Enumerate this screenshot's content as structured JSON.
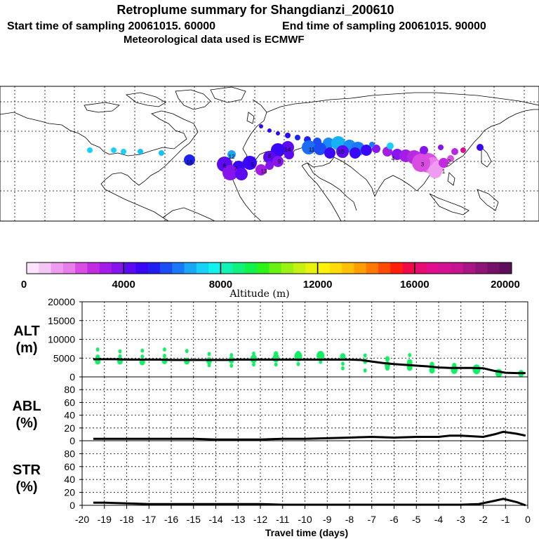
{
  "header": {
    "title": "Retroplume summary for Shangdianzi_200610",
    "start_label": "Start time of sampling 20061015. 60000",
    "end_label": "End time of sampling 20061015. 90000",
    "met_label": "Meteorological data used is ECMWF"
  },
  "colorbar": {
    "label": "Altitude (m)",
    "tick_labels": [
      "0",
      "4000",
      "8000",
      "12000",
      "16000",
      "20000"
    ],
    "min": 0,
    "max": 20000,
    "colors": [
      "#fbe4fb",
      "#f4c6f4",
      "#ee9cf0",
      "#e77ee9",
      "#d94de3",
      "#c22be0",
      "#a31de6",
      "#8514ed",
      "#5b0af2",
      "#3a07f6",
      "#1f1ff0",
      "#1c4cf4",
      "#1979f6",
      "#1aa7f6",
      "#17d1f7",
      "#14f2ef",
      "#11f2b4",
      "#10f27c",
      "#12f24a",
      "#2cf21a",
      "#67f214",
      "#9bf212",
      "#c7f211",
      "#e8f20e",
      "#fff20a",
      "#ffdc08",
      "#ffbf06",
      "#ff9d05",
      "#ff7804",
      "#ff4a05",
      "#ff1f0a",
      "#f00a47",
      "#e80b71",
      "#e00e8c",
      "#d31293",
      "#c3158f",
      "#a91585",
      "#8f1477",
      "#751268",
      "#5d0f59"
    ]
  },
  "map": {
    "plume_labels": [
      "16",
      "12",
      "13",
      "14",
      "11",
      "10",
      "9",
      "8",
      "7",
      "6",
      "5",
      "4",
      "3",
      "2",
      "1"
    ]
  },
  "chart_data": [
    {
      "type": "scatter",
      "panel": "ALT",
      "ylabel": "ALT\n(m)",
      "ylabel_lines": [
        "ALT",
        "(m)"
      ],
      "ylim": [
        0,
        20000
      ],
      "yticks": [
        "20000",
        "15000",
        "10000",
        "5000",
        "0"
      ],
      "xlim": [
        -20,
        0
      ],
      "line_x": [
        -19.5,
        -19,
        -18.5,
        -18,
        -17.5,
        -17,
        -16.5,
        -16,
        -15.5,
        -15,
        -14.5,
        -14,
        -13.5,
        -13,
        -12.5,
        -12,
        -11.5,
        -11,
        -10.5,
        -10,
        -9.5,
        -9,
        -8.5,
        -8,
        -7.5,
        -7,
        -6.5,
        -6,
        -5.5,
        -5,
        -4.5,
        -4,
        -3.5,
        -3,
        -2.5,
        -2,
        -1.5,
        -1,
        -0.5,
        -0.1
      ],
      "line_y": [
        4700,
        4700,
        4700,
        4600,
        4600,
        4600,
        4600,
        4500,
        4500,
        4500,
        4500,
        4500,
        4500,
        4600,
        4600,
        4600,
        4600,
        4600,
        4600,
        4600,
        4600,
        4600,
        4600,
        4600,
        4500,
        4100,
        3700,
        3400,
        3200,
        3000,
        2800,
        2500,
        2400,
        2400,
        2400,
        2300,
        1600,
        1100,
        1000,
        1000
      ],
      "scatter": [
        {
          "x": -19.3,
          "y": 4200,
          "size": 5
        },
        {
          "x": -19.3,
          "y": 5200,
          "size": 4
        },
        {
          "x": -19.3,
          "y": 7300,
          "size": 3
        },
        {
          "x": -18.3,
          "y": 4200,
          "size": 5
        },
        {
          "x": -18.3,
          "y": 5500,
          "size": 3
        },
        {
          "x": -18.3,
          "y": 6800,
          "size": 3
        },
        {
          "x": -17.3,
          "y": 4000,
          "size": 5
        },
        {
          "x": -17.3,
          "y": 5400,
          "size": 3
        },
        {
          "x": -17.3,
          "y": 7000,
          "size": 3
        },
        {
          "x": -16.3,
          "y": 4300,
          "size": 5
        },
        {
          "x": -16.3,
          "y": 5600,
          "size": 3
        },
        {
          "x": -16.3,
          "y": 7300,
          "size": 3
        },
        {
          "x": -15.3,
          "y": 4200,
          "size": 5
        },
        {
          "x": -15.3,
          "y": 6900,
          "size": 3
        },
        {
          "x": -14.3,
          "y": 4300,
          "size": 5
        },
        {
          "x": -14.3,
          "y": 3100,
          "size": 3
        },
        {
          "x": -14.3,
          "y": 6100,
          "size": 3
        },
        {
          "x": -13.3,
          "y": 4500,
          "size": 5
        },
        {
          "x": -13.3,
          "y": 3000,
          "size": 3
        },
        {
          "x": -13.3,
          "y": 5800,
          "size": 3
        },
        {
          "x": -12.3,
          "y": 4800,
          "size": 6
        },
        {
          "x": -12.3,
          "y": 3300,
          "size": 3
        },
        {
          "x": -12.3,
          "y": 6200,
          "size": 3
        },
        {
          "x": -11.3,
          "y": 5000,
          "size": 6
        },
        {
          "x": -11.3,
          "y": 3300,
          "size": 3
        },
        {
          "x": -11.3,
          "y": 6100,
          "size": 4
        },
        {
          "x": -10.3,
          "y": 5400,
          "size": 7
        },
        {
          "x": -10.3,
          "y": 3400,
          "size": 3
        },
        {
          "x": -10.3,
          "y": 6000,
          "size": 5
        },
        {
          "x": -9.3,
          "y": 5600,
          "size": 7
        },
        {
          "x": -9.3,
          "y": 4000,
          "size": 3
        },
        {
          "x": -8.3,
          "y": 5400,
          "size": 5
        },
        {
          "x": -8.3,
          "y": 3500,
          "size": 3
        },
        {
          "x": -8.3,
          "y": 2300,
          "size": 3
        },
        {
          "x": -7.3,
          "y": 5700,
          "size": 3
        },
        {
          "x": -7.3,
          "y": 4200,
          "size": 4
        },
        {
          "x": -7.3,
          "y": 1700,
          "size": 3
        },
        {
          "x": -6.3,
          "y": 4800,
          "size": 4
        },
        {
          "x": -6.3,
          "y": 3200,
          "size": 5
        },
        {
          "x": -6.3,
          "y": 2400,
          "size": 4
        },
        {
          "x": -5.3,
          "y": 5800,
          "size": 3
        },
        {
          "x": -5.3,
          "y": 3800,
          "size": 5
        },
        {
          "x": -5.3,
          "y": 2500,
          "size": 5
        },
        {
          "x": -4.3,
          "y": 3300,
          "size": 4
        },
        {
          "x": -4.3,
          "y": 1800,
          "size": 5
        },
        {
          "x": -3.3,
          "y": 3000,
          "size": 4
        },
        {
          "x": -3.3,
          "y": 1900,
          "size": 6
        },
        {
          "x": -2.3,
          "y": 2000,
          "size": 7
        },
        {
          "x": -1.3,
          "y": 1000,
          "size": 6
        },
        {
          "x": -0.3,
          "y": 900,
          "size": 5
        }
      ],
      "marker_color": "#14ef66"
    },
    {
      "type": "line",
      "panel": "ABL",
      "ylabel_lines": [
        "ABL",
        "(%)"
      ],
      "ylim": [
        0,
        100
      ],
      "yticks": [
        "80",
        "60",
        "40",
        "20",
        "0"
      ],
      "xlim": [
        -20,
        0
      ],
      "x": [
        -19.5,
        -19,
        -18,
        -17,
        -16,
        -15,
        -14,
        -13,
        -12,
        -11,
        -10,
        -9,
        -8,
        -7,
        -6,
        -5,
        -4,
        -3.5,
        -3,
        -2.5,
        -2,
        -1.5,
        -1.1,
        -0.5,
        -0.1
      ],
      "y": [
        3,
        3,
        3,
        3,
        3,
        3,
        2,
        2,
        2,
        3,
        3,
        4,
        5,
        6,
        5,
        6,
        6,
        8,
        8,
        7,
        6,
        10,
        14,
        11,
        8
      ]
    },
    {
      "type": "line",
      "panel": "STR",
      "ylabel_lines": [
        "STR",
        "(%)"
      ],
      "ylim": [
        0,
        100
      ],
      "yticks": [
        "80",
        "60",
        "40",
        "20",
        "0"
      ],
      "xlim": [
        -20,
        0
      ],
      "xlabel": "Travel time (days)",
      "xticks": [
        "-20",
        "-19",
        "-18",
        "-17",
        "-16",
        "-15",
        "-14",
        "-13",
        "-12",
        "-11",
        "-10",
        "-9",
        "-8",
        "-7",
        "-6",
        "-5",
        "-4",
        "-3",
        "-2",
        "-1",
        "0"
      ],
      "x": [
        -19.5,
        -19,
        -18,
        -17,
        -16,
        -15,
        -14,
        -13,
        -12,
        -11,
        -10,
        -9,
        -8,
        -7,
        -6,
        -5,
        -4,
        -3,
        -2.2,
        -1.5,
        -1.1,
        -0.5,
        -0.1
      ],
      "y": [
        4,
        4,
        3,
        2,
        2,
        2,
        2,
        2,
        2,
        1,
        1,
        1,
        1,
        1,
        1,
        1,
        1,
        1,
        2,
        7,
        10,
        5,
        0
      ]
    }
  ]
}
